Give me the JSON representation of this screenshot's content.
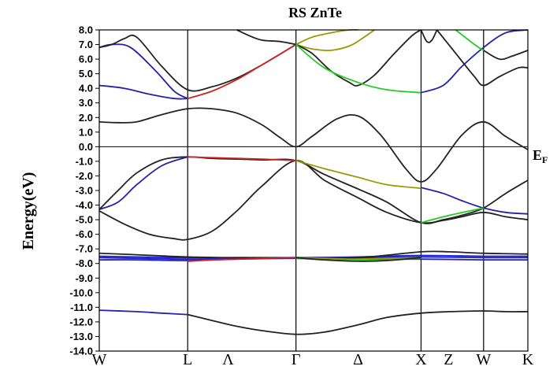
{
  "chart_data": {
    "type": "line",
    "title": "RS ZnTe",
    "ylabel": "Energy(eV)",
    "xlabel": "",
    "ylim": [
      -14.0,
      8.0
    ],
    "yticks": [
      "8.0",
      "7.0",
      "6.0",
      "5.0",
      "4.0",
      "3.0",
      "2.0",
      "1.0",
      "0.0",
      "-1.0",
      "-2.0",
      "-3.0",
      "-4.0",
      "-5.0",
      "-6.0",
      "-7.0",
      "-8.0",
      "-9.0",
      "-10.0",
      "-11.0",
      "-12.0",
      "-13.0",
      "-14.0"
    ],
    "fermi_label": "EF",
    "kpath": [
      {
        "label": "W",
        "x": 0.0
      },
      {
        "label": "L",
        "x": 0.707
      },
      {
        "label": "Λ",
        "x": 1.03
      },
      {
        "label": "Γ",
        "x": 1.573
      },
      {
        "label": "Δ",
        "x": 2.07
      },
      {
        "label": "X",
        "x": 2.573
      },
      {
        "label": "Z",
        "x": 2.793
      },
      {
        "label": "W",
        "x": 3.073
      },
      {
        "label": "K",
        "x": 3.427
      }
    ],
    "high_symmetry_x": [
      0.707,
      1.573,
      2.573,
      3.073
    ],
    "series": [
      {
        "color": "#222222",
        "x": [
          0.0,
          0.15,
          0.3,
          0.5,
          0.707,
          0.9,
          1.1,
          1.3,
          1.45,
          1.573,
          1.7,
          1.9,
          2.07,
          2.25,
          2.45,
          2.573,
          2.7,
          2.9,
          3.073,
          3.25,
          3.427
        ],
        "y": [
          1.7,
          1.65,
          1.7,
          2.2,
          2.6,
          2.6,
          2.3,
          1.5,
          0.6,
          0.0,
          0.7,
          1.9,
          2.1,
          0.8,
          -1.5,
          -2.4,
          -1.5,
          0.8,
          1.7,
          0.7,
          -0.2
        ]
      },
      {
        "color": "#222222",
        "x": [
          0.0,
          0.15,
          0.3,
          0.5,
          0.707,
          0.9,
          1.1,
          1.3,
          1.573,
          1.8,
          2.07,
          2.3,
          2.573,
          2.75,
          2.9,
          3.073,
          3.25,
          3.427
        ],
        "y": [
          -4.3,
          -3.0,
          -1.8,
          -0.9,
          -0.7,
          -0.8,
          -0.85,
          -0.9,
          -0.95,
          -1.9,
          -2.9,
          -3.8,
          -5.2,
          -5.0,
          -4.7,
          -4.2,
          -3.2,
          -2.3
        ]
      },
      {
        "color": "#222222",
        "x": [
          0.0,
          0.2,
          0.4,
          0.6,
          0.707,
          0.9,
          1.1,
          1.3,
          1.573,
          1.8,
          2.07,
          2.3,
          2.573,
          2.75,
          2.9,
          3.073,
          3.25,
          3.427
        ],
        "y": [
          -4.4,
          -5.3,
          -6.0,
          -6.3,
          -6.35,
          -5.8,
          -4.4,
          -2.7,
          -0.95,
          -2.3,
          -3.5,
          -4.5,
          -5.2,
          -5.05,
          -4.8,
          -4.5,
          -4.8,
          -5.0
        ]
      },
      {
        "color": "#2222aa",
        "x": [
          0.0,
          0.15,
          0.3,
          0.5,
          0.707
        ],
        "y": [
          -4.3,
          -3.8,
          -2.6,
          -1.3,
          -0.7
        ]
      },
      {
        "color": "#2222aa",
        "x": [
          2.573,
          2.75,
          2.9,
          3.073,
          3.25,
          3.427
        ],
        "y": [
          -2.8,
          -3.2,
          -3.7,
          -4.2,
          -4.5,
          -4.6
        ]
      },
      {
        "color": "#cc2222",
        "x": [
          0.707,
          0.9,
          1.1,
          1.3,
          1.573
        ],
        "y": [
          -0.7,
          -0.75,
          -0.8,
          -0.85,
          -0.95
        ]
      },
      {
        "color": "#999900",
        "x": [
          1.573,
          1.8,
          2.07,
          2.3,
          2.573
        ],
        "y": [
          -0.95,
          -1.5,
          -2.1,
          -2.6,
          -2.85
        ]
      },
      {
        "color": "#22cc22",
        "x": [
          2.573,
          2.8,
          3.073
        ],
        "y": [
          -5.2,
          -4.7,
          -4.2
        ]
      },
      {
        "color": "#2222aa",
        "x": [
          0.0,
          0.2,
          0.4,
          0.6,
          0.707
        ],
        "y": [
          4.2,
          4.0,
          3.6,
          3.3,
          3.3
        ]
      },
      {
        "color": "#2222aa",
        "x": [
          0.0,
          0.1,
          0.25,
          0.45,
          0.6,
          0.707
        ],
        "y": [
          6.8,
          7.0,
          6.8,
          5.2,
          3.8,
          3.3
        ]
      },
      {
        "color": "#222222",
        "x": [
          0.0,
          0.1,
          0.2,
          0.3,
          0.5,
          0.707,
          0.9,
          1.1,
          1.3,
          1.573
        ],
        "y": [
          6.8,
          7.0,
          7.4,
          7.5,
          5.5,
          3.9,
          4.1,
          4.7,
          5.6,
          7.0
        ]
      },
      {
        "color": "#cc2222",
        "x": [
          0.707,
          0.9,
          1.1,
          1.3,
          1.573
        ],
        "y": [
          3.3,
          3.8,
          4.6,
          5.6,
          7.0
        ]
      },
      {
        "color": "#222222",
        "x": [
          1.1,
          1.2,
          1.3,
          1.45,
          1.573
        ],
        "y": [
          8.0,
          7.6,
          7.3,
          7.2,
          7.0
        ]
      },
      {
        "color": "#999900",
        "x": [
          1.573,
          1.7,
          1.85,
          2.0,
          2.07
        ],
        "y": [
          7.0,
          7.5,
          7.8,
          8.0,
          8.0
        ]
      },
      {
        "color": "#999900",
        "x": [
          1.573,
          1.7,
          1.85,
          2.0,
          2.1,
          2.2
        ],
        "y": [
          7.0,
          6.7,
          6.6,
          6.9,
          7.4,
          8.0
        ]
      },
      {
        "color": "#222222",
        "x": [
          1.573,
          1.7,
          1.85,
          2.0,
          2.07,
          2.2,
          2.35,
          2.5,
          2.573
        ],
        "y": [
          7.0,
          6.4,
          5.2,
          4.4,
          4.2,
          4.9,
          6.3,
          7.6,
          8.0
        ]
      },
      {
        "color": "#22cc22",
        "x": [
          1.573,
          1.8,
          2.07,
          2.3,
          2.573
        ],
        "y": [
          7.0,
          5.4,
          4.4,
          3.9,
          3.7
        ]
      },
      {
        "color": "#2222aa",
        "x": [
          2.573,
          2.75,
          2.9,
          3.073,
          3.25,
          3.427
        ],
        "y": [
          3.7,
          4.2,
          5.5,
          6.8,
          7.8,
          8.0
        ]
      },
      {
        "color": "#222222",
        "x": [
          2.7,
          2.85,
          3.0,
          3.073,
          3.2,
          3.35,
          3.427
        ],
        "y": [
          8.0,
          6.4,
          4.8,
          4.2,
          4.8,
          5.4,
          5.4
        ]
      },
      {
        "color": "#22cc22",
        "x": [
          2.85,
          3.0,
          3.073
        ],
        "y": [
          8.0,
          7.0,
          6.6
        ]
      },
      {
        "color": "#222222",
        "x": [
          2.573,
          2.62,
          2.66,
          2.7
        ],
        "y": [
          8.0,
          7.2,
          7.3,
          8.0
        ]
      },
      {
        "color": "#222222",
        "x": [
          3.073,
          3.2,
          3.3,
          3.427
        ],
        "y": [
          6.6,
          6.0,
          6.2,
          6.6
        ]
      },
      {
        "color": "#2222cc",
        "x": [
          0.0,
          0.3,
          0.707,
          1.1,
          1.573,
          2.07,
          2.573,
          3.073,
          3.427
        ],
        "y": [
          -7.6,
          -7.65,
          -7.7,
          -7.65,
          -7.6,
          -7.6,
          -7.55,
          -7.6,
          -7.6
        ]
      },
      {
        "color": "#2222cc",
        "x": [
          0.0,
          0.3,
          0.707,
          1.1,
          1.573,
          2.07,
          2.573,
          3.073,
          3.427
        ],
        "y": [
          -7.75,
          -7.75,
          -7.8,
          -7.7,
          -7.65,
          -7.7,
          -7.7,
          -7.75,
          -7.75
        ]
      },
      {
        "color": "#2222cc",
        "x": [
          0.0,
          0.3,
          0.707,
          1.1,
          1.573,
          2.07,
          2.573,
          3.073,
          3.427
        ],
        "y": [
          -7.5,
          -7.55,
          -7.6,
          -7.6,
          -7.6,
          -7.55,
          -7.45,
          -7.5,
          -7.5
        ]
      },
      {
        "color": "#222222",
        "x": [
          0.0,
          0.3,
          0.707,
          1.1,
          1.573,
          2.07,
          2.573,
          2.8,
          3.073,
          3.427
        ],
        "y": [
          -7.3,
          -7.4,
          -7.55,
          -7.6,
          -7.6,
          -7.6,
          -7.2,
          -7.2,
          -7.3,
          -7.35
        ]
      },
      {
        "color": "#cc2222",
        "x": [
          0.707,
          0.9,
          1.1,
          1.3,
          1.573
        ],
        "y": [
          -7.85,
          -7.75,
          -7.7,
          -7.65,
          -7.6
        ]
      },
      {
        "color": "#999900",
        "x": [
          1.573,
          1.8,
          2.07,
          2.3,
          2.573
        ],
        "y": [
          -7.6,
          -7.65,
          -7.7,
          -7.65,
          -7.6
        ]
      },
      {
        "color": "#22cc22",
        "x": [
          1.573,
          1.8,
          2.07,
          2.3,
          2.573
        ],
        "y": [
          -7.65,
          -7.75,
          -7.8,
          -7.75,
          -7.65
        ]
      },
      {
        "color": "#222222",
        "x": [
          1.573,
          1.8,
          2.07,
          2.3,
          2.573
        ],
        "y": [
          -7.6,
          -7.75,
          -7.85,
          -7.8,
          -7.6
        ]
      },
      {
        "color": "#2222aa",
        "x": [
          0.0,
          0.3,
          0.5,
          0.707
        ],
        "y": [
          -11.2,
          -11.3,
          -11.4,
          -11.5
        ]
      },
      {
        "color": "#222222",
        "x": [
          0.707,
          0.9,
          1.1,
          1.3,
          1.573,
          1.8,
          2.07,
          2.3,
          2.573,
          2.8,
          3.073,
          3.25,
          3.427
        ],
        "y": [
          -11.5,
          -11.9,
          -12.3,
          -12.6,
          -12.85,
          -12.7,
          -12.2,
          -11.7,
          -11.4,
          -11.3,
          -11.25,
          -11.3,
          -11.3
        ]
      }
    ]
  }
}
